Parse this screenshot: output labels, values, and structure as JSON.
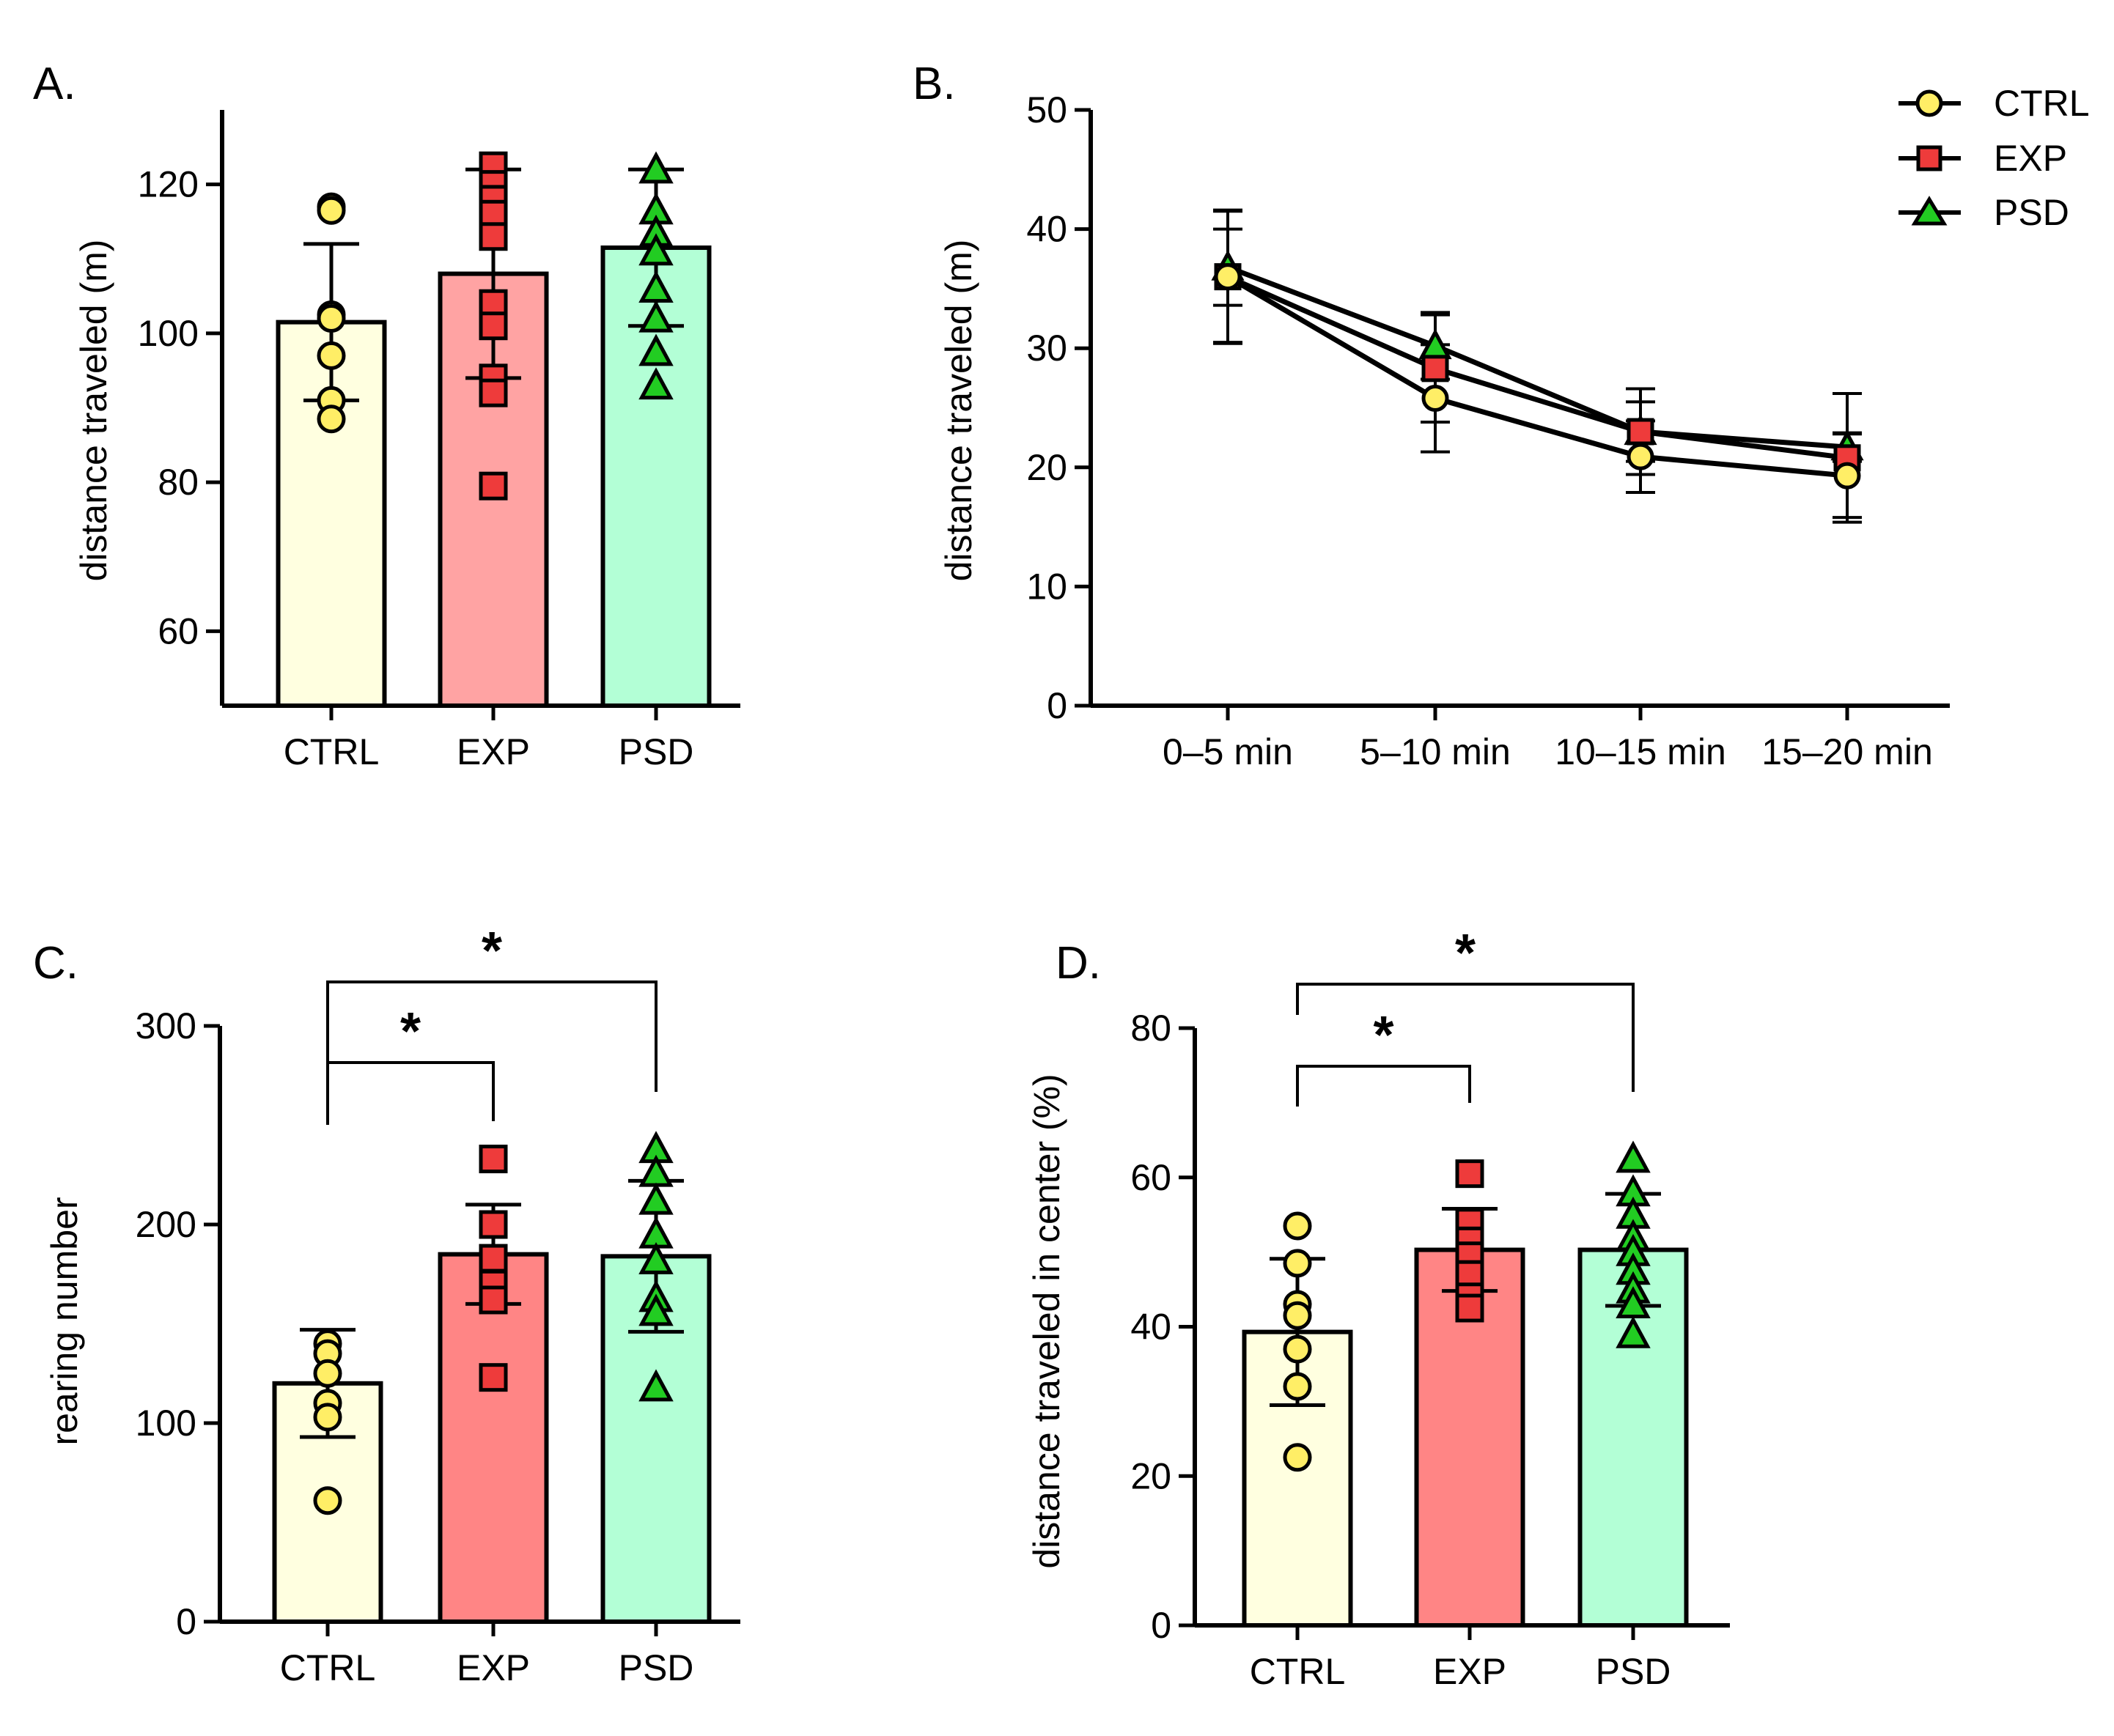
{
  "chart_data": [
    {
      "id": "A",
      "panel": "A.",
      "type": "bar",
      "title": "",
      "xlabel": "",
      "ylabel": "distance traveled (m)",
      "ylim": [
        50,
        130
      ],
      "yticks": [
        60,
        80,
        100,
        120
      ],
      "categories": [
        "CTRL",
        "EXP",
        "PSD"
      ],
      "series": [
        {
          "name": "CTRL",
          "mean": 101.5,
          "err": 10.5,
          "points": [
            117,
            116.5,
            102.5,
            102,
            97,
            91,
            88.5
          ]
        },
        {
          "name": "EXP",
          "mean": 108,
          "err": 14,
          "points": [
            122.5,
            120,
            118,
            116,
            113,
            104,
            101,
            94,
            92,
            79.5
          ]
        },
        {
          "name": "PSD",
          "mean": 111.5,
          "err": 10.5,
          "points": [
            122,
            116.5,
            113.5,
            111,
            106,
            102,
            97.5,
            93
          ]
        }
      ]
    },
    {
      "id": "B",
      "panel": "B.",
      "type": "line",
      "title": "",
      "xlabel": "",
      "ylabel": "distance traveled (m)",
      "ylim": [
        0,
        50
      ],
      "yticks": [
        0,
        10,
        20,
        30,
        40,
        50
      ],
      "categories": [
        "0–5 min",
        "5–10 min",
        "10–15 min",
        "15–20 min"
      ],
      "legend": [
        "CTRL",
        "EXP",
        "PSD"
      ],
      "series": [
        {
          "name": "CTRL",
          "values": [
            36,
            25.8,
            20.9,
            19.3
          ],
          "err": [
            5.6,
            4.5,
            3.0,
            3.5
          ]
        },
        {
          "name": "EXP",
          "values": [
            36,
            28.3,
            23,
            20.8
          ],
          "err": [
            5.5,
            4.5,
            3.6,
            5.4
          ]
        },
        {
          "name": "PSD",
          "values": [
            36.8,
            30.2,
            23,
            21.7
          ],
          "err": [
            3.2,
            2.8,
            2.5,
            1.2
          ]
        }
      ]
    },
    {
      "id": "C",
      "panel": "C.",
      "type": "bar",
      "title": "",
      "xlabel": "",
      "ylabel": "rearing number",
      "ylim": [
        0,
        300
      ],
      "yticks": [
        0,
        100,
        200,
        300
      ],
      "categories": [
        "CTRL",
        "EXP",
        "PSD"
      ],
      "series": [
        {
          "name": "CTRL",
          "mean": 120,
          "err": 27,
          "points": [
            140,
            135,
            125,
            110,
            103,
            61
          ]
        },
        {
          "name": "EXP",
          "mean": 185,
          "err": 25,
          "points": [
            233,
            200,
            183,
            170,
            162,
            123
          ]
        },
        {
          "name": "PSD",
          "mean": 184,
          "err": 38,
          "points": [
            238,
            226,
            212,
            195,
            182,
            163,
            156,
            118
          ]
        }
      ],
      "significance": [
        {
          "from": 0,
          "to": 1,
          "label": "*"
        },
        {
          "from": 0,
          "to": 2,
          "label": "*"
        }
      ]
    },
    {
      "id": "D",
      "panel": "D.",
      "type": "bar",
      "title": "",
      "xlabel": "",
      "ylabel": "distance traveled in center (%)",
      "ylim": [
        0,
        80
      ],
      "yticks": [
        0,
        20,
        40,
        60,
        80
      ],
      "categories": [
        "CTRL",
        "EXP",
        "PSD"
      ],
      "series": [
        {
          "name": "CTRL",
          "mean": 39.3,
          "err": 9.8,
          "points": [
            53.5,
            48.5,
            43,
            41.5,
            37,
            32,
            22.5
          ]
        },
        {
          "name": "EXP",
          "mean": 50.3,
          "err": 5.5,
          "points": [
            60.5,
            54,
            51.5,
            49.5,
            47,
            44,
            42.5
          ]
        },
        {
          "name": "PSD",
          "mean": 50.3,
          "err": 7.5,
          "points": [
            62.5,
            58,
            55,
            52,
            50,
            47.5,
            45,
            43,
            39
          ]
        }
      ],
      "significance": [
        {
          "from": 0,
          "to": 1,
          "label": "*"
        },
        {
          "from": 0,
          "to": 2,
          "label": "*"
        }
      ]
    }
  ],
  "styles": {
    "CTRL": {
      "bar": "#ffffe0",
      "marker": "#ffee66",
      "shape": "circle"
    },
    "EXP": {
      "bar": "#ffa3a3",
      "barAlt": "#ff8585",
      "marker": "#ee3b3b",
      "shape": "square"
    },
    "PSD": {
      "bar": "#b3ffd6",
      "marker": "#22cc22",
      "shape": "triangle"
    }
  }
}
